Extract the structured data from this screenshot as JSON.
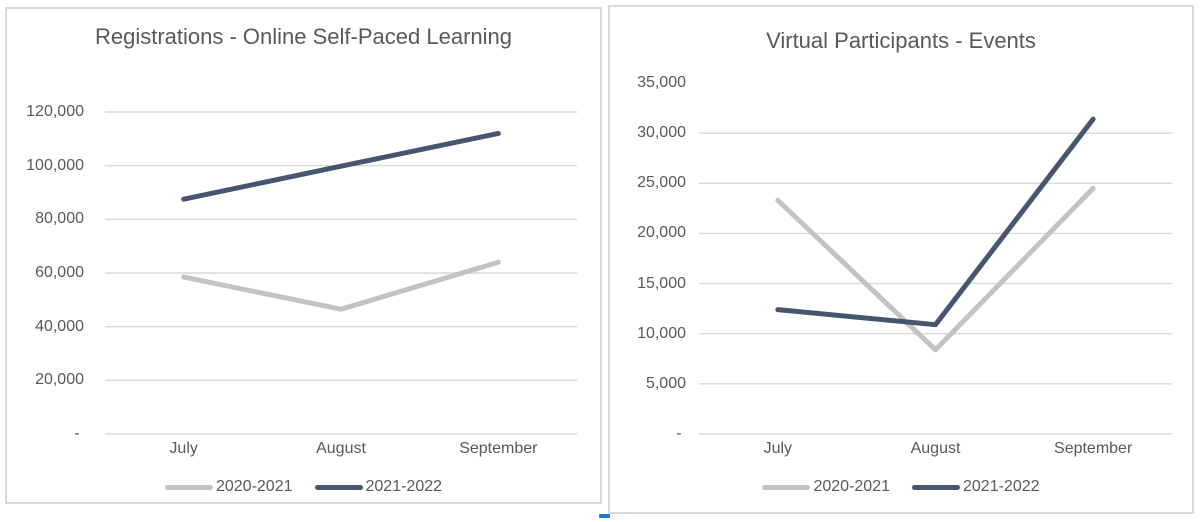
{
  "chart_data": [
    {
      "type": "line",
      "title": "Registrations - Online Self-Paced Learning",
      "categories": [
        "July",
        "August",
        "September"
      ],
      "series": [
        {
          "name": "2020-2021",
          "color": "#c3c3c3",
          "values": [
            58500,
            46500,
            64000
          ]
        },
        {
          "name": "2021-2022",
          "color": "#46566e",
          "values": [
            87500,
            99800,
            112000
          ]
        }
      ],
      "ylim": [
        0,
        120000
      ],
      "yticks": [
        {
          "label": "- ",
          "value": 0
        },
        {
          "label": "20,000",
          "value": 20000
        },
        {
          "label": "40,000",
          "value": 40000
        },
        {
          "label": "60,000",
          "value": 60000
        },
        {
          "label": "80,000",
          "value": 80000
        },
        {
          "label": "100,000",
          "value": 100000
        },
        {
          "label": "120,000",
          "value": 120000
        }
      ],
      "xlabel": "",
      "ylabel": "",
      "grid": true,
      "legend_position": "bottom"
    },
    {
      "type": "line",
      "title": "Virtual Participants - Events",
      "categories": [
        "July",
        "August",
        "September"
      ],
      "series": [
        {
          "name": "2020-2021",
          "color": "#c3c3c3",
          "values": [
            23300,
            8400,
            24500
          ]
        },
        {
          "name": "2021-2022",
          "color": "#46566e",
          "values": [
            12400,
            10900,
            31400
          ]
        }
      ],
      "ylim": [
        0,
        35000
      ],
      "yticks": [
        {
          "label": "- ",
          "value": 0
        },
        {
          "label": "5,000",
          "value": 5000
        },
        {
          "label": "10,000",
          "value": 10000
        },
        {
          "label": "15,000",
          "value": 15000
        },
        {
          "label": "20,000",
          "value": 20000
        },
        {
          "label": "25,000",
          "value": 25000
        },
        {
          "label": "30,000",
          "value": 30000
        },
        {
          "label": "35,000",
          "value": 35000,
          "gridline": false
        }
      ],
      "xlabel": "",
      "ylabel": "",
      "grid": true,
      "legend_position": "bottom"
    }
  ],
  "styles": {
    "text_color": "#595959",
    "gridline_color": "#d9d9d9",
    "panel_border_color": "#d9d9d9",
    "line_width": 5
  },
  "artifacts": {
    "blue_cursor_color": "#1d7ad4"
  }
}
